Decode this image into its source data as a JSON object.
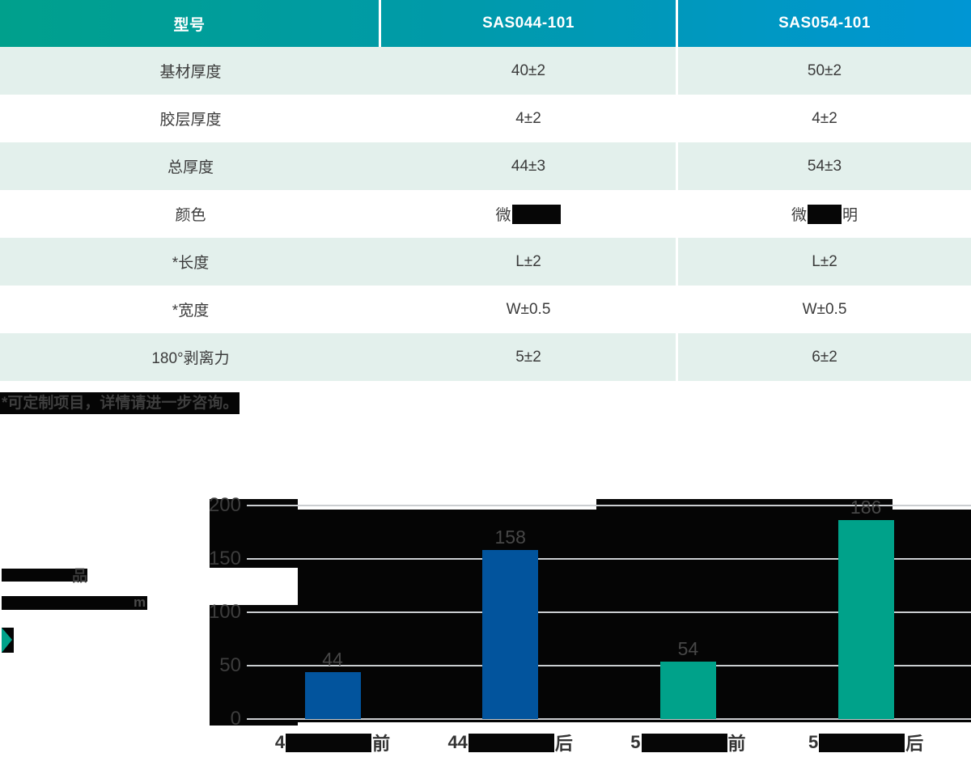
{
  "table": {
    "columns": [
      "型号",
      "SAS044-101",
      "SAS054-101"
    ],
    "rows": [
      {
        "label": "基材厚度",
        "v1": "40±2",
        "v2": "50±2"
      },
      {
        "label": "胶层厚度",
        "v1": "4±2",
        "v2": "4±2"
      },
      {
        "label": "总厚度",
        "v1": "44±3",
        "v2": "54±3"
      },
      {
        "label": "颜色",
        "v1_prefix": "微",
        "v1_suffix": "",
        "v2_prefix": "微",
        "v2_suffix": "明"
      },
      {
        "label": "*长度",
        "v1": "L±2",
        "v2": "L±2"
      },
      {
        "label": "*宽度",
        "v1": "W±0.5",
        "v2": "W±0.5"
      },
      {
        "label": "180°剥离力",
        "v1": "5±2",
        "v2": "6±2"
      }
    ],
    "footnote": "*可定制项目，详情请进一步咨询。"
  },
  "chart_data": {
    "type": "bar",
    "legend_line1_visible": "品",
    "legend_line2_visible": "m",
    "categories": [
      {
        "prefix": "4",
        "suffix": "前"
      },
      {
        "prefix": "44",
        "suffix": "后"
      },
      {
        "prefix": "5",
        "suffix": "前"
      },
      {
        "prefix": "5",
        "suffix": "后"
      }
    ],
    "values": [
      44,
      158,
      54,
      186
    ],
    "bar_colors": [
      "#02549d",
      "#02549d",
      "#00a28a",
      "#00a28a"
    ],
    "yticks": [
      0,
      50,
      100,
      150,
      200
    ],
    "ylim": [
      0,
      200
    ],
    "grid": true,
    "legend_position": "left"
  },
  "colors": {
    "header_gradient_left": "#00a08c",
    "header_gradient_mid": "#009aab",
    "header_gradient_right": "#0096d4",
    "row_stripe": "#e3f0ec",
    "bar_blue": "#02549d",
    "bar_teal": "#00a28a",
    "gridline": "#cbced1",
    "glitch_black": "#050505"
  }
}
